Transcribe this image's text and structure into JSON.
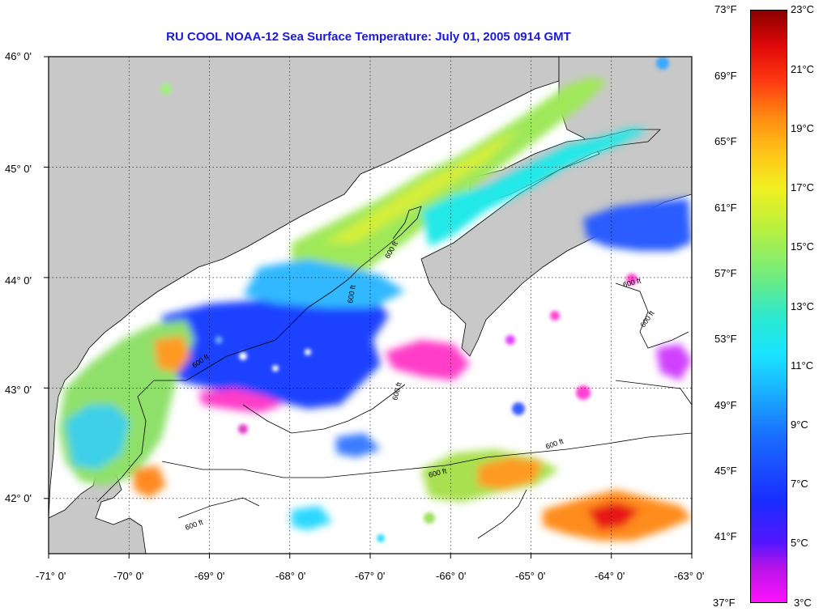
{
  "title": "RU COOL  NOAA-12  Sea Surface Temperature:  July 01, 2005 0914 GMT",
  "map": {
    "latitude_labels": [
      "46° 0'",
      "45° 0'",
      "44° 0'",
      "43° 0'",
      "42° 0'"
    ],
    "longitude_labels": [
      "-71° 0'",
      "-70° 0'",
      "-69° 0'",
      "-68° 0'",
      "-67° 0'",
      "-66° 0'",
      "-65° 0'",
      "-64° 0'",
      "-63° 0'"
    ],
    "contour_label": "600 ft",
    "lat_range": [
      41.5,
      46.0
    ],
    "lon_range": [
      -71.0,
      -63.0
    ],
    "grid": "dotted",
    "colors": {
      "land": "#c8c8c8",
      "cloud_no_data": "#ffffff",
      "frame": "#000000"
    }
  },
  "colorbar": {
    "fahrenheit_labels": [
      "73°F",
      "69°F",
      "65°F",
      "61°F",
      "57°F",
      "53°F",
      "49°F",
      "45°F",
      "41°F",
      "37°F"
    ],
    "celsius_labels": [
      "23°C",
      "21°C",
      "19°C",
      "17°C",
      "15°C",
      "13°C",
      "11°C",
      "9°C",
      "7°C",
      "5°C",
      "3°C"
    ],
    "min_c": 3,
    "max_c": 23
  }
}
